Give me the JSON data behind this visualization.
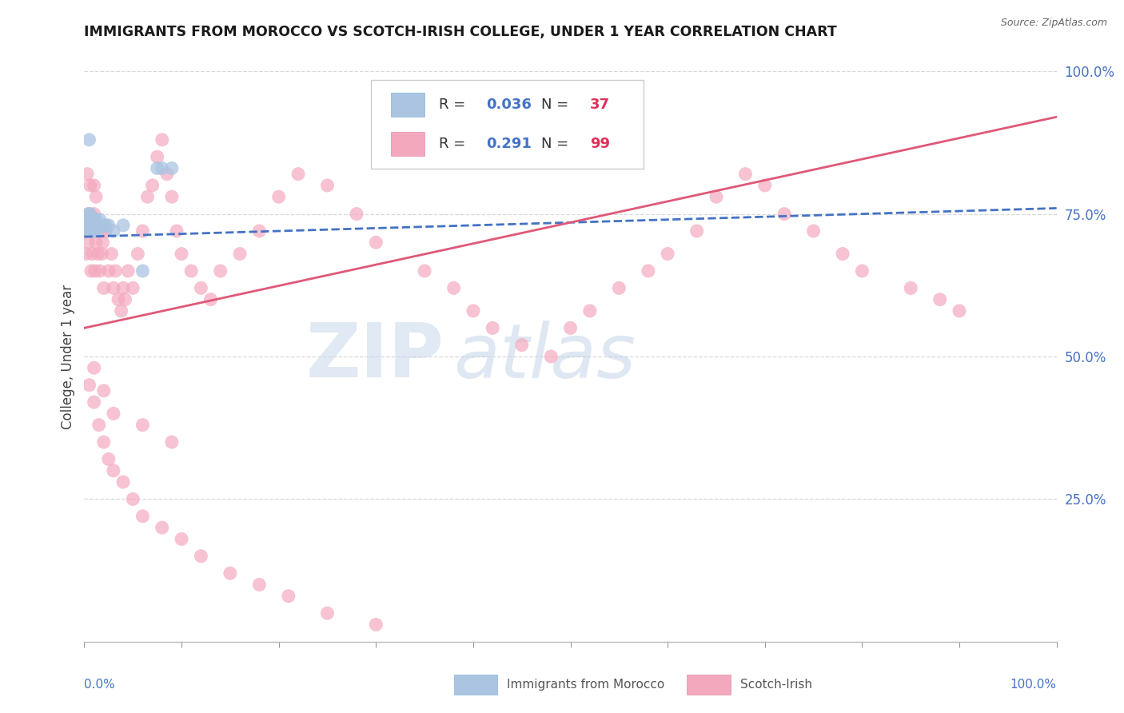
{
  "title": "IMMIGRANTS FROM MOROCCO VS SCOTCH-IRISH COLLEGE, UNDER 1 YEAR CORRELATION CHART",
  "source": "Source: ZipAtlas.com",
  "ylabel": "College, Under 1 year",
  "legend_blue_R": "0.036",
  "legend_blue_N": "37",
  "legend_pink_R": "0.291",
  "legend_pink_N": "99",
  "legend_blue_label": "Immigrants from Morocco",
  "legend_pink_label": "Scotch-Irish",
  "blue_dot_color": "#aac4e2",
  "pink_dot_color": "#f4a8be",
  "blue_line_color": "#4472c4",
  "pink_line_color": "#e05878",
  "right_tick_color": "#4472c4",
  "grid_color": "#d8d8d8",
  "blue_x": [
    0.002,
    0.003,
    0.003,
    0.004,
    0.004,
    0.005,
    0.005,
    0.006,
    0.006,
    0.007,
    0.007,
    0.008,
    0.008,
    0.009,
    0.009,
    0.01,
    0.01,
    0.011,
    0.011,
    0.012,
    0.012,
    0.013,
    0.014,
    0.015,
    0.016,
    0.016,
    0.018,
    0.02,
    0.022,
    0.025,
    0.03,
    0.04,
    0.06,
    0.075,
    0.08,
    0.09,
    0.005
  ],
  "blue_y": [
    0.73,
    0.72,
    0.74,
    0.73,
    0.75,
    0.72,
    0.74,
    0.73,
    0.75,
    0.73,
    0.74,
    0.72,
    0.74,
    0.73,
    0.74,
    0.72,
    0.74,
    0.73,
    0.74,
    0.73,
    0.74,
    0.73,
    0.72,
    0.73,
    0.74,
    0.73,
    0.73,
    0.73,
    0.73,
    0.73,
    0.72,
    0.73,
    0.65,
    0.83,
    0.83,
    0.83,
    0.88
  ],
  "pink_x": [
    0.001,
    0.002,
    0.003,
    0.004,
    0.005,
    0.006,
    0.007,
    0.007,
    0.008,
    0.009,
    0.01,
    0.01,
    0.011,
    0.012,
    0.012,
    0.013,
    0.014,
    0.015,
    0.016,
    0.017,
    0.018,
    0.019,
    0.02,
    0.022,
    0.025,
    0.028,
    0.03,
    0.032,
    0.035,
    0.038,
    0.04,
    0.042,
    0.045,
    0.05,
    0.055,
    0.06,
    0.065,
    0.07,
    0.075,
    0.08,
    0.085,
    0.09,
    0.095,
    0.1,
    0.11,
    0.12,
    0.13,
    0.14,
    0.16,
    0.18,
    0.2,
    0.22,
    0.25,
    0.28,
    0.3,
    0.35,
    0.38,
    0.4,
    0.42,
    0.45,
    0.48,
    0.5,
    0.52,
    0.55,
    0.58,
    0.6,
    0.63,
    0.65,
    0.68,
    0.7,
    0.72,
    0.75,
    0.78,
    0.8,
    0.85,
    0.88,
    0.9,
    0.005,
    0.01,
    0.015,
    0.02,
    0.025,
    0.03,
    0.04,
    0.05,
    0.06,
    0.08,
    0.1,
    0.12,
    0.15,
    0.18,
    0.21,
    0.25,
    0.3,
    0.01,
    0.02,
    0.03,
    0.06,
    0.09
  ],
  "pink_y": [
    0.72,
    0.68,
    0.82,
    0.7,
    0.75,
    0.8,
    0.65,
    0.72,
    0.68,
    0.72,
    0.75,
    0.8,
    0.65,
    0.7,
    0.78,
    0.72,
    0.68,
    0.73,
    0.65,
    0.72,
    0.68,
    0.7,
    0.62,
    0.72,
    0.65,
    0.68,
    0.62,
    0.65,
    0.6,
    0.58,
    0.62,
    0.6,
    0.65,
    0.62,
    0.68,
    0.72,
    0.78,
    0.8,
    0.85,
    0.88,
    0.82,
    0.78,
    0.72,
    0.68,
    0.65,
    0.62,
    0.6,
    0.65,
    0.68,
    0.72,
    0.78,
    0.82,
    0.8,
    0.75,
    0.7,
    0.65,
    0.62,
    0.58,
    0.55,
    0.52,
    0.5,
    0.55,
    0.58,
    0.62,
    0.65,
    0.68,
    0.72,
    0.78,
    0.82,
    0.8,
    0.75,
    0.72,
    0.68,
    0.65,
    0.62,
    0.6,
    0.58,
    0.45,
    0.42,
    0.38,
    0.35,
    0.32,
    0.3,
    0.28,
    0.25,
    0.22,
    0.2,
    0.18,
    0.15,
    0.12,
    0.1,
    0.08,
    0.05,
    0.03,
    0.48,
    0.44,
    0.4,
    0.38,
    0.35
  ],
  "blue_trend_x0": 0.0,
  "blue_trend_x1": 1.0,
  "blue_trend_y0": 0.71,
  "blue_trend_y1": 0.76,
  "pink_trend_x0": 0.0,
  "pink_trend_x1": 1.0,
  "pink_trend_y0": 0.55,
  "pink_trend_y1": 0.92,
  "xlim": [
    0.0,
    1.0
  ],
  "ylim": [
    0.0,
    1.0
  ],
  "ytick_positions": [
    0.25,
    0.5,
    0.75,
    1.0
  ],
  "ytick_labels": [
    "25.0%",
    "50.0%",
    "75.0%",
    "100.0%"
  ],
  "xtick_count": 10,
  "watermark_zip": "ZIP",
  "watermark_atlas": "atlas"
}
